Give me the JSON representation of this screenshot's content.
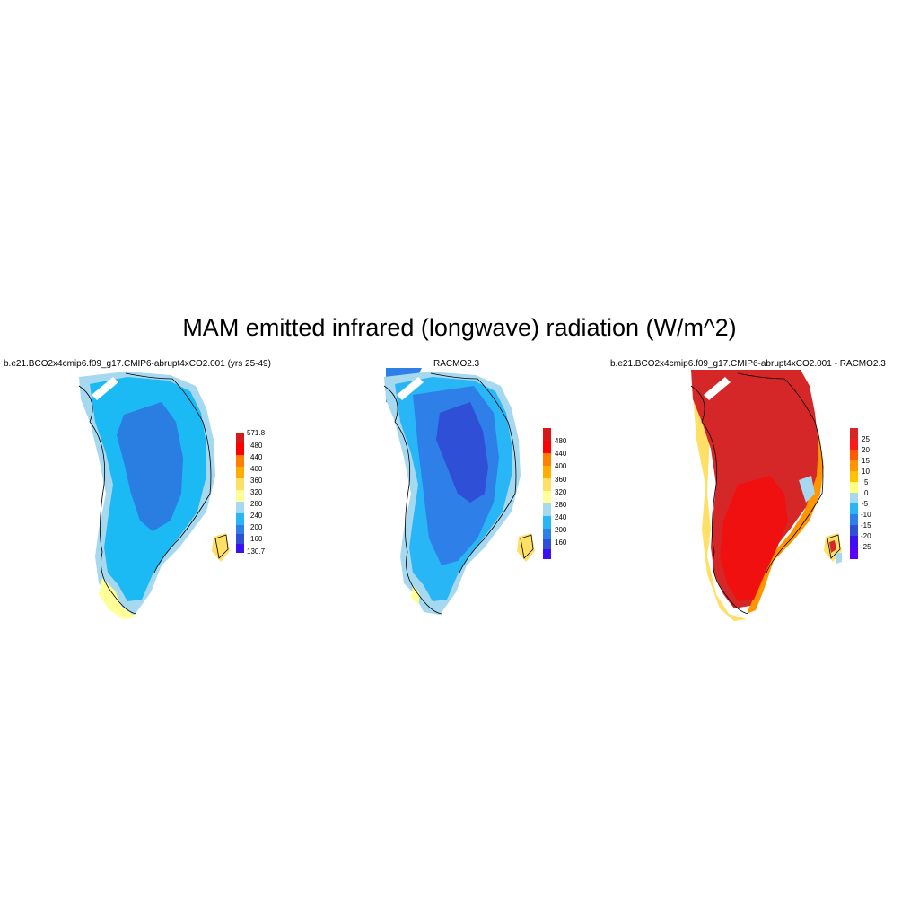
{
  "title": "MAM emitted infrared (longwave) radiation (W/m^2)",
  "panels": [
    {
      "title": "b.e21.BCO2x4cmip6.f09_g17.CMIP6-abrupt4xCO2.001 (yrs 25-49)",
      "colorbar": {
        "labels": [
          "571.8",
          "480",
          "440",
          "400",
          "360",
          "320",
          "280",
          "240",
          "200",
          "160",
          "130.7"
        ],
        "colors": [
          "#d7191c",
          "#ff0000",
          "#ff7f00",
          "#ffae00",
          "#ffe066",
          "#ffff99",
          "#a6d8f0",
          "#29b6f6",
          "#2e7fe8",
          "#2f4fd6",
          "#3b10f5"
        ]
      },
      "region_colors": {
        "outer": "#a6d8f0",
        "mid": "#1cbaf5",
        "core": "#2a7de1",
        "south_edge": "#ffff99",
        "east_island": "#ffe066"
      }
    },
    {
      "title": "RACMO2.3",
      "colorbar": {
        "labels": [
          "480",
          "440",
          "400",
          "360",
          "320",
          "280",
          "240",
          "200",
          "160"
        ],
        "colors": [
          "#d7191c",
          "#ff0000",
          "#ff7f00",
          "#ffae00",
          "#ffe066",
          "#ffff99",
          "#a6d8f0",
          "#29b6f6",
          "#2e7fe8",
          "#2f4fd6",
          "#3b10f5"
        ]
      },
      "region_colors": {
        "outer": "#a6d8f0",
        "mid": "#29b6f6",
        "core": "#2e7fe8",
        "inner": "#2f4fd6",
        "south_edge": "#ffff99",
        "east_island": "#ffe066"
      }
    },
    {
      "title": "b.e21.BCO2x4cmip6.f09_g17.CMIP6-abrupt4xCO2.001 - RACMO2.3",
      "colorbar": {
        "labels": [
          "25",
          "20",
          "15",
          "10",
          "5",
          "0",
          "-5",
          "-10",
          "-15",
          "-20",
          "-25"
        ],
        "colors": [
          "#d62728",
          "#ff1a1a",
          "#ff5a00",
          "#ff9500",
          "#ffc400",
          "#ffff80",
          "#a6d8f0",
          "#29b6f6",
          "#2e7fe8",
          "#2f4fd6",
          "#3b10f5",
          "#5a00ff"
        ]
      },
      "region_colors": {
        "main": "#d62728",
        "warm": "#f01010",
        "edge_orange": "#ff9500",
        "edge_yellow": "#ffe066",
        "edge_blue": "#a6d8f0"
      }
    }
  ]
}
